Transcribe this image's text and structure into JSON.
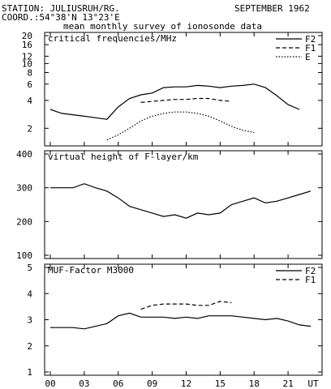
{
  "header": {
    "station": "STATION: JULIUSRUH/RG.",
    "coord": "COORD.:54°38'N 13°23'E",
    "date": "SEPTEMBER 1962",
    "subtitle": "mean monthly survey of ionosonde data"
  },
  "chart_data": [
    {
      "type": "line",
      "title": "critical frequencies/MHz",
      "yscale": "log",
      "ylim": [
        1.4,
        20
      ],
      "yticks": [
        2,
        4,
        6,
        8,
        10,
        12,
        16,
        20
      ],
      "xlim": [
        0,
        23
      ],
      "series": [
        {
          "name": "F2",
          "style": "solid",
          "x": [
            0,
            1,
            2,
            3,
            4,
            5,
            6,
            7,
            8,
            9,
            10,
            11,
            12,
            13,
            14,
            15,
            16,
            17,
            18,
            19,
            20,
            21,
            22,
            23
          ],
          "y": [
            3.2,
            2.9,
            2.8,
            2.7,
            2.6,
            2.5,
            3.4,
            4.2,
            4.6,
            4.8,
            5.5,
            5.6,
            5.6,
            5.8,
            5.7,
            5.5,
            5.7,
            5.8,
            6.0,
            5.5,
            4.5,
            3.6,
            3.2,
            null
          ]
        },
        {
          "name": "F1",
          "style": "dashed",
          "x": [
            8,
            9,
            10,
            11,
            12,
            13,
            14,
            15,
            16
          ],
          "y": [
            3.8,
            3.9,
            4.0,
            4.1,
            4.1,
            4.2,
            4.2,
            4.0,
            3.9
          ]
        },
        {
          "name": "E",
          "style": "dotted",
          "x": [
            5,
            6,
            7,
            8,
            9,
            10,
            11,
            12,
            13,
            14,
            15,
            16,
            17,
            18
          ],
          "y": [
            1.5,
            1.7,
            2.0,
            2.4,
            2.7,
            2.9,
            3.0,
            3.0,
            2.9,
            2.7,
            2.4,
            2.1,
            1.9,
            1.8
          ]
        }
      ]
    },
    {
      "type": "line",
      "title": "virtual height of F-layer/km",
      "ylim": [
        100,
        400
      ],
      "yticks": [
        100,
        200,
        300,
        400
      ],
      "xlim": [
        0,
        23
      ],
      "series": [
        {
          "style": "solid",
          "x": [
            0,
            1,
            2,
            3,
            4,
            5,
            6,
            7,
            8,
            9,
            10,
            11,
            12,
            13,
            14,
            15,
            16,
            17,
            18,
            19,
            20,
            21,
            22,
            23
          ],
          "y": [
            300,
            300,
            300,
            312,
            300,
            290,
            270,
            245,
            235,
            225,
            215,
            220,
            210,
            225,
            220,
            225,
            250,
            260,
            270,
            255,
            260,
            270,
            280,
            290
          ]
        }
      ]
    },
    {
      "type": "line",
      "title": "MUF-Factor M3000",
      "ylim": [
        1,
        5
      ],
      "yticks": [
        1,
        2,
        3,
        4,
        5
      ],
      "xlim": [
        0,
        23
      ],
      "series": [
        {
          "name": "F2",
          "style": "solid",
          "x": [
            0,
            1,
            2,
            3,
            4,
            5,
            6,
            7,
            8,
            9,
            10,
            11,
            12,
            13,
            14,
            15,
            16,
            17,
            18,
            19,
            20,
            21,
            22,
            23
          ],
          "y": [
            2.7,
            2.7,
            2.7,
            2.65,
            2.75,
            2.85,
            3.15,
            3.25,
            3.1,
            3.1,
            3.1,
            3.05,
            3.1,
            3.05,
            3.15,
            3.15,
            3.15,
            3.1,
            3.05,
            3.0,
            3.05,
            2.95,
            2.8,
            2.75
          ]
        },
        {
          "name": "F1",
          "style": "dashed",
          "x": [
            8,
            9,
            10,
            11,
            12,
            13,
            14,
            15,
            16
          ],
          "y": [
            3.4,
            3.55,
            3.6,
            3.6,
            3.6,
            3.55,
            3.55,
            3.7,
            3.65
          ]
        }
      ]
    }
  ],
  "x_axis": {
    "ticks": [
      {
        "hour": 0,
        "label": "00"
      },
      {
        "hour": 3,
        "label": "03"
      },
      {
        "hour": 6,
        "label": "06"
      },
      {
        "hour": 9,
        "label": "09"
      },
      {
        "hour": 12,
        "label": "12"
      },
      {
        "hour": 15,
        "label": "15"
      },
      {
        "hour": 18,
        "label": "18"
      },
      {
        "hour": 21,
        "label": "21"
      }
    ],
    "unit_label": "UT"
  }
}
